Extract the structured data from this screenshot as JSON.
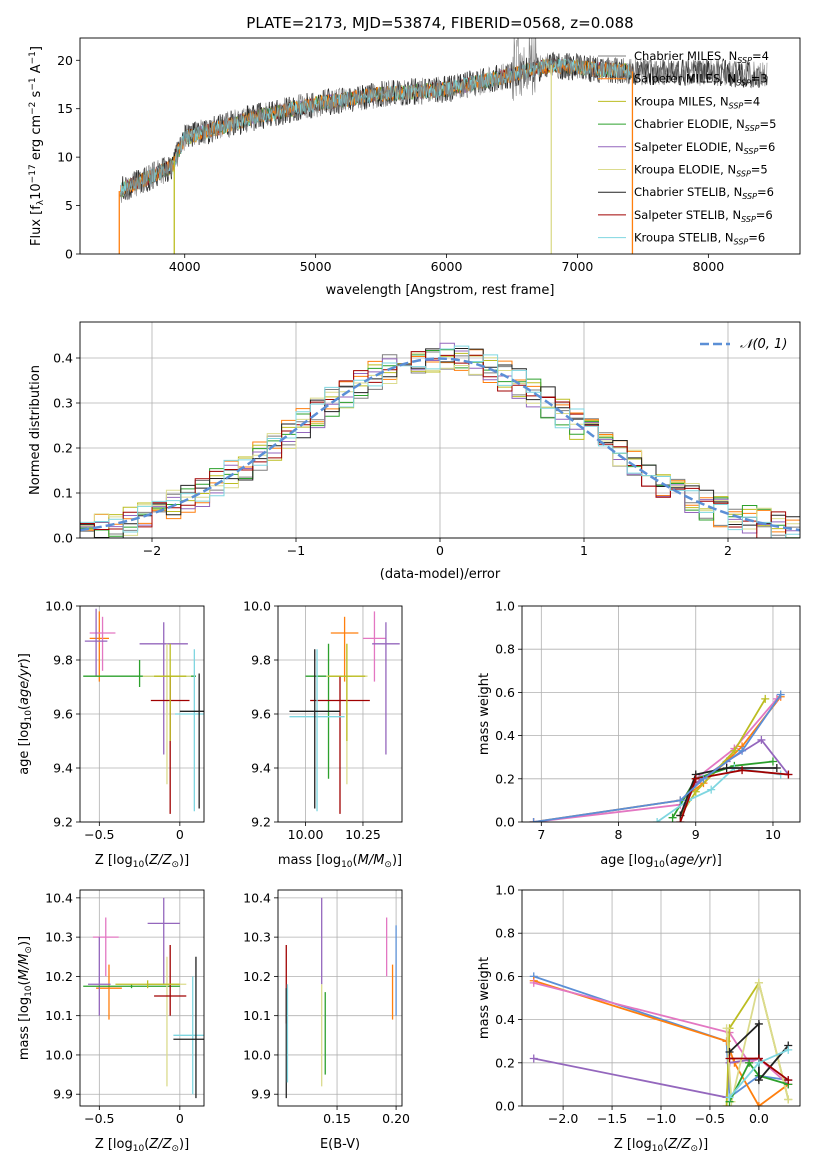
{
  "figure_title": "PLATE=2173, MJD=53874, FIBERID=0568, z=0.088",
  "colors": {
    "Chabrier MILES": "#7f7f7f",
    "Salpeter MILES": "#ff7f0e",
    "Kroupa MILES": "#bcbd22",
    "Chabrier ELODIE": "#2ca02c",
    "Salpeter ELODIE": "#9467bd",
    "Kroupa ELODIE": "#dbdb8d",
    "Chabrier STELIB": "#222222",
    "Salpeter STELIB": "#a00000",
    "Kroupa STELIB": "#7fd6e0",
    "normal_curve": "#5b8fd6",
    "pink": "#e377c2",
    "blue": "#1f77b4"
  },
  "chart_data": [
    {
      "id": "spectrum",
      "type": "line",
      "xlabel": "wavelength [Angstrom, rest frame]",
      "ylabel": "Flux [f_λ10^-17 erg cm^-2 s^-1 A^-1]",
      "xlim": [
        3200,
        8700
      ],
      "ylim": [
        0,
        22.3
      ],
      "xticks": [
        4000,
        5000,
        6000,
        7000,
        8000
      ],
      "yticks": [
        0,
        5,
        10,
        15,
        20
      ],
      "x_range_data": [
        3500,
        8500
      ],
      "continuum_points": [
        [
          3500,
          6.5
        ],
        [
          3900,
          9.0
        ],
        [
          4000,
          12.0
        ],
        [
          4500,
          14.0
        ],
        [
          5000,
          15.5
        ],
        [
          5500,
          16.5
        ],
        [
          6000,
          17.0
        ],
        [
          6500,
          18.5
        ],
        [
          6800,
          19.5
        ],
        [
          7200,
          19.0
        ],
        [
          7500,
          18.8
        ],
        [
          8000,
          18.7
        ],
        [
          8500,
          18.5
        ]
      ],
      "series": [
        {
          "name": "Chabrier MILES, N_SSP=4",
          "label_main": "Chabrier MILES, N",
          "label_sub": "SSP",
          "label_tail": "=4"
        },
        {
          "name": "Salpeter MILES, N_SSP=3",
          "label_main": "Salpeter MILES, N",
          "label_sub": "SSP",
          "label_tail": "=3"
        },
        {
          "name": "Kroupa MILES, N_SSP=4",
          "label_main": "Kroupa MILES, N",
          "label_sub": "SSP",
          "label_tail": "=4"
        },
        {
          "name": "Chabrier ELODIE, N_SSP=5",
          "label_main": "Chabrier ELODIE, N",
          "label_sub": "SSP",
          "label_tail": "=5"
        },
        {
          "name": "Salpeter ELODIE, N_SSP=6",
          "label_main": "Salpeter ELODIE, N",
          "label_sub": "SSP",
          "label_tail": "=6"
        },
        {
          "name": "Kroupa ELODIE, N_SSP=5",
          "label_main": "Kroupa ELODIE, N",
          "label_sub": "SSP",
          "label_tail": "=5"
        },
        {
          "name": "Chabrier STELIB, N_SSP=6",
          "label_main": "Chabrier STELIB, N",
          "label_sub": "SSP",
          "label_tail": "=6"
        },
        {
          "name": "Salpeter STELIB, N_SSP=6",
          "label_main": "Salpeter STELIB, N",
          "label_sub": "SSP",
          "label_tail": "=6"
        },
        {
          "name": "Kroupa STELIB, N_SSP=6",
          "label_main": "Kroupa STELIB, N",
          "label_sub": "SSP",
          "label_tail": "=6"
        }
      ],
      "legend": "upper right"
    },
    {
      "id": "residuals",
      "type": "histogram",
      "xlabel": "(data-model)/error",
      "ylabel": "Normed distribution",
      "xlim": [
        -2.5,
        2.5
      ],
      "ylim": [
        0,
        0.48
      ],
      "xticks": [
        -2,
        -1,
        0,
        1,
        2
      ],
      "yticks": [
        0.0,
        0.1,
        0.2,
        0.3,
        0.4
      ],
      "bin_width": 0.1,
      "legend_label": "𝒩(0, 1)",
      "legend": "upper right"
    },
    {
      "id": "age_vs_Z",
      "type": "scatter",
      "xlabel": "Z [log10(Z/Z⊙)]",
      "ylabel": "age [log10(age/yr)]",
      "xlim": [
        -0.62,
        0.15
      ],
      "ylim": [
        9.2,
        10.0
      ],
      "xticks": [
        -0.5,
        0.0
      ],
      "yticks": [
        9.2,
        9.4,
        9.6,
        9.8,
        10.0
      ],
      "points": [
        {
          "x": -0.5,
          "y": 9.88,
          "xerr": 0.06,
          "ylo": 9.72,
          "yhi": 9.98,
          "c": "#ff7f0e"
        },
        {
          "x": -0.48,
          "y": 9.9,
          "xerr": 0.08,
          "ylo": 9.76,
          "yhi": 9.96,
          "c": "#e377c2"
        },
        {
          "x": -0.52,
          "y": 9.87,
          "xerr": 0.07,
          "ylo": 9.74,
          "yhi": 9.99,
          "c": "#9467bd"
        },
        {
          "x": -0.25,
          "y": 9.74,
          "xerr": 0.35,
          "ylo": 9.7,
          "yhi": 9.8,
          "c": "#2ca02c"
        },
        {
          "x": -0.1,
          "y": 9.86,
          "xerr": 0.15,
          "ylo": 9.45,
          "yhi": 9.94,
          "c": "#9467bd"
        },
        {
          "x": -0.08,
          "y": 9.74,
          "xerr": 0.15,
          "ylo": 9.34,
          "yhi": 9.86,
          "c": "#dbdb8d"
        },
        {
          "x": -0.06,
          "y": 9.65,
          "xerr": 0.12,
          "ylo": 9.23,
          "yhi": 9.74,
          "c": "#a00000"
        },
        {
          "x": 0.09,
          "y": 9.6,
          "xerr": 0.12,
          "ylo": 9.24,
          "yhi": 9.84,
          "c": "#7fd6e0"
        },
        {
          "x": 0.12,
          "y": 9.61,
          "xerr": 0.12,
          "ylo": 9.25,
          "yhi": 9.75,
          "c": "#222222"
        },
        {
          "x": -0.06,
          "y": 9.74,
          "xerr": 0.1,
          "ylo": 9.5,
          "yhi": 9.86,
          "c": "#bcbd22"
        }
      ]
    },
    {
      "id": "age_vs_mass",
      "type": "scatter",
      "xlabel": "mass [log10(M/M⊙)]",
      "xlim": [
        9.88,
        10.42
      ],
      "ylim": [
        9.2,
        10.0
      ],
      "xticks": [
        10.0,
        10.25
      ],
      "xtick_labels": [
        "10.00",
        "10.25"
      ],
      "yticks": [
        9.2,
        9.4,
        9.6,
        9.8,
        10.0
      ],
      "points": [
        {
          "x": 10.17,
          "y": 9.9,
          "xerr": 0.06,
          "ylo": 9.72,
          "yhi": 9.96,
          "c": "#ff7f0e"
        },
        {
          "x": 10.3,
          "y": 9.88,
          "xerr": 0.05,
          "ylo": 9.72,
          "yhi": 9.98,
          "c": "#e377c2"
        },
        {
          "x": 10.35,
          "y": 9.86,
          "xerr": 0.06,
          "ylo": 9.45,
          "yhi": 9.94,
          "c": "#9467bd"
        },
        {
          "x": 10.1,
          "y": 9.74,
          "xerr": 0.1,
          "ylo": 9.36,
          "yhi": 9.86,
          "c": "#2ca02c"
        },
        {
          "x": 10.18,
          "y": 9.74,
          "xerr": 0.09,
          "ylo": 9.34,
          "yhi": 9.86,
          "c": "#dbdb8d"
        },
        {
          "x": 10.15,
          "y": 9.65,
          "xerr": 0.13,
          "ylo": 9.23,
          "yhi": 9.74,
          "c": "#a00000"
        },
        {
          "x": 10.05,
          "y": 9.59,
          "xerr": 0.12,
          "ylo": 9.24,
          "yhi": 9.84,
          "c": "#7fd6e0"
        },
        {
          "x": 10.04,
          "y": 9.61,
          "xerr": 0.11,
          "ylo": 9.25,
          "yhi": 9.84,
          "c": "#222222"
        },
        {
          "x": 10.18,
          "y": 9.74,
          "xerr": 0.08,
          "ylo": 9.5,
          "yhi": 9.86,
          "c": "#bcbd22"
        }
      ]
    },
    {
      "id": "massweight_vs_age",
      "type": "line",
      "xlabel": "age [log10(age/yr)]",
      "ylabel": "mass weight",
      "xlim": [
        6.75,
        10.35
      ],
      "ylim": [
        0,
        1.0
      ],
      "xticks": [
        7,
        8,
        9,
        10
      ],
      "yticks": [
        0.0,
        0.2,
        0.4,
        0.6,
        0.8,
        1.0
      ],
      "series": [
        {
          "c": "#ff7f0e",
          "x": [
            6.9,
            8.8,
            9.1,
            9.6,
            10.1
          ],
          "y": [
            0.0,
            0.1,
            0.18,
            0.35,
            0.58
          ]
        },
        {
          "c": "#e377c2",
          "x": [
            6.9,
            8.8,
            9.0,
            9.5,
            10.05
          ],
          "y": [
            0.0,
            0.08,
            0.2,
            0.34,
            0.57
          ]
        },
        {
          "c": "#9467bd",
          "x": [
            8.8,
            9.0,
            9.4,
            9.85,
            10.2
          ],
          "y": [
            0.03,
            0.18,
            0.28,
            0.38,
            0.22
          ]
        },
        {
          "c": "#bcbd22",
          "x": [
            8.8,
            9.0,
            9.5,
            9.9
          ],
          "y": [
            0.03,
            0.14,
            0.33,
            0.57
          ]
        },
        {
          "c": "#2ca02c",
          "x": [
            8.7,
            9.0,
            9.5,
            10.0
          ],
          "y": [
            0.02,
            0.2,
            0.26,
            0.28
          ]
        },
        {
          "c": "#7fd6e0",
          "x": [
            8.5,
            8.9,
            9.2,
            9.5,
            10.1
          ],
          "y": [
            0.0,
            0.1,
            0.15,
            0.25,
            0.22
          ]
        },
        {
          "c": "#222222",
          "x": [
            8.8,
            9.0,
            9.4,
            10.05
          ],
          "y": [
            0.03,
            0.22,
            0.25,
            0.25
          ]
        },
        {
          "c": "#a00000",
          "x": [
            8.8,
            9.0,
            9.6,
            10.2
          ],
          "y": [
            0.0,
            0.2,
            0.24,
            0.22
          ]
        },
        {
          "c": "#5b8fd6",
          "x": [
            6.9,
            8.8,
            9.1,
            9.6,
            10.1
          ],
          "y": [
            0.0,
            0.1,
            0.2,
            0.33,
            0.59
          ]
        }
      ]
    },
    {
      "id": "mass_vs_Z",
      "type": "scatter",
      "xlabel": "Z [log10(Z/Z⊙)]",
      "ylabel": "mass [log10(M/M⊙)]",
      "xlim": [
        -0.62,
        0.15
      ],
      "ylim": [
        9.87,
        10.42
      ],
      "xticks": [
        -0.5,
        0.0
      ],
      "yticks": [
        9.9,
        10.0,
        10.1,
        10.2,
        10.3,
        10.4
      ],
      "points": [
        {
          "x": -0.46,
          "y": 10.3,
          "xerr": 0.08,
          "ylo": 10.2,
          "yhi": 10.35,
          "c": "#e377c2"
        },
        {
          "x": -0.44,
          "y": 10.17,
          "xerr": 0.08,
          "ylo": 10.09,
          "yhi": 10.23,
          "c": "#ff7f0e"
        },
        {
          "x": -0.5,
          "y": 10.18,
          "xerr": 0.07,
          "ylo": 10.1,
          "yhi": 10.3,
          "c": "#9467bd"
        },
        {
          "x": -0.3,
          "y": 10.175,
          "xerr": 0.3,
          "ylo": 10.17,
          "yhi": 10.18,
          "c": "#2ca02c"
        },
        {
          "x": -0.1,
          "y": 10.335,
          "xerr": 0.1,
          "ylo": 10.18,
          "yhi": 10.4,
          "c": "#9467bd"
        },
        {
          "x": -0.08,
          "y": 10.18,
          "xerr": 0.12,
          "ylo": 9.92,
          "yhi": 10.25,
          "c": "#dbdb8d"
        },
        {
          "x": -0.06,
          "y": 10.15,
          "xerr": 0.1,
          "ylo": 10.1,
          "yhi": 10.28,
          "c": "#a00000"
        },
        {
          "x": 0.08,
          "y": 10.05,
          "xerr": 0.12,
          "ylo": 9.9,
          "yhi": 10.2,
          "c": "#7fd6e0"
        },
        {
          "x": 0.1,
          "y": 10.04,
          "xerr": 0.14,
          "ylo": 9.89,
          "yhi": 10.25,
          "c": "#222222"
        },
        {
          "x": -0.2,
          "y": 10.18,
          "xerr": 0.2,
          "ylo": 10.17,
          "yhi": 10.19,
          "c": "#bcbd22"
        }
      ]
    },
    {
      "id": "mass_vs_ebv",
      "type": "scatter",
      "xlabel": "E(B-V)",
      "xlim": [
        0.1,
        0.205
      ],
      "ylim": [
        9.87,
        10.42
      ],
      "xticks": [
        0.15,
        0.2
      ],
      "xtick_labels": [
        "0.15",
        "0.20"
      ],
      "yticks": [
        9.9,
        10.0,
        10.1,
        10.2,
        10.3,
        10.4
      ],
      "points": [
        {
          "x": 0.107,
          "y": 10.18,
          "ylo": 10.08,
          "yhi": 10.28,
          "c": "#a00000"
        },
        {
          "x": 0.107,
          "y": 10.05,
          "ylo": 9.89,
          "yhi": 10.17,
          "c": "#222222"
        },
        {
          "x": 0.108,
          "y": 10.05,
          "ylo": 9.93,
          "yhi": 10.18,
          "c": "#7fd6e0"
        },
        {
          "x": 0.137,
          "y": 10.34,
          "ylo": 10.18,
          "yhi": 10.4,
          "c": "#9467bd"
        },
        {
          "x": 0.137,
          "y": 10.05,
          "ylo": 9.92,
          "yhi": 10.18,
          "c": "#dbdb8d"
        },
        {
          "x": 0.14,
          "y": 10.05,
          "ylo": 9.95,
          "yhi": 10.16,
          "c": "#2ca02c"
        },
        {
          "x": 0.192,
          "y": 10.3,
          "ylo": 10.2,
          "yhi": 10.35,
          "c": "#e377c2"
        },
        {
          "x": 0.197,
          "y": 10.17,
          "ylo": 10.09,
          "yhi": 10.23,
          "c": "#ff7f0e"
        },
        {
          "x": 0.2,
          "y": 10.18,
          "ylo": 10.1,
          "yhi": 10.33,
          "c": "#5b8fd6"
        }
      ]
    },
    {
      "id": "massweight_vs_Z",
      "type": "line",
      "xlabel": "Z [log10(Z/Z⊙)]",
      "ylabel": "mass weight",
      "xlim": [
        -2.42,
        0.42
      ],
      "ylim": [
        0,
        1.0
      ],
      "xticks": [
        -2.0,
        -1.5,
        -1.0,
        -0.5,
        0.0
      ],
      "xtick_labels": [
        "−2.0",
        "−1.5",
        "−1.0",
        "−0.5",
        "0.0"
      ],
      "yticks": [
        0.0,
        0.2,
        0.4,
        0.6,
        0.8,
        1.0
      ],
      "series": [
        {
          "c": "#5b8fd6",
          "x": [
            -2.3,
            -0.33,
            -0.3,
            0.0,
            0.3
          ],
          "y": [
            0.6,
            0.3,
            0.04,
            0.14,
            0.12
          ]
        },
        {
          "c": "#ff7f0e",
          "x": [
            -2.3,
            -0.33,
            -0.25,
            0.0,
            0.3
          ],
          "y": [
            0.58,
            0.3,
            0.2,
            0.0,
            0.1
          ]
        },
        {
          "c": "#e377c2",
          "x": [
            -2.3,
            -0.3,
            -0.1,
            0.0,
            0.3
          ],
          "y": [
            0.57,
            0.34,
            0.2,
            0.22,
            0.1
          ]
        },
        {
          "c": "#9467bd",
          "x": [
            -2.3,
            -0.33,
            -0.3,
            0.0
          ],
          "y": [
            0.22,
            0.04,
            0.2,
            0.22
          ]
        },
        {
          "c": "#bcbd22",
          "x": [
            -0.33,
            -0.3,
            0.0,
            0.3
          ],
          "y": [
            0.0,
            0.36,
            0.57,
            0.03
          ]
        },
        {
          "c": "#dbdb8d",
          "x": [
            -0.33,
            -0.28,
            0.0,
            0.3
          ],
          "y": [
            0.36,
            0.02,
            0.57,
            0.03
          ]
        },
        {
          "c": "#2ca02c",
          "x": [
            -0.3,
            -0.1,
            0.0,
            0.3
          ],
          "y": [
            0.02,
            0.2,
            0.14,
            0.1
          ]
        },
        {
          "c": "#222222",
          "x": [
            -0.3,
            0.0,
            0.0,
            0.3
          ],
          "y": [
            0.25,
            0.38,
            0.12,
            0.28
          ]
        },
        {
          "c": "#a00000",
          "x": [
            -0.3,
            0.0,
            0.3
          ],
          "y": [
            0.22,
            0.22,
            0.12
          ]
        },
        {
          "c": "#7fd6e0",
          "x": [
            -0.3,
            0.0,
            0.3
          ],
          "y": [
            0.04,
            0.2,
            0.26
          ]
        }
      ]
    }
  ]
}
